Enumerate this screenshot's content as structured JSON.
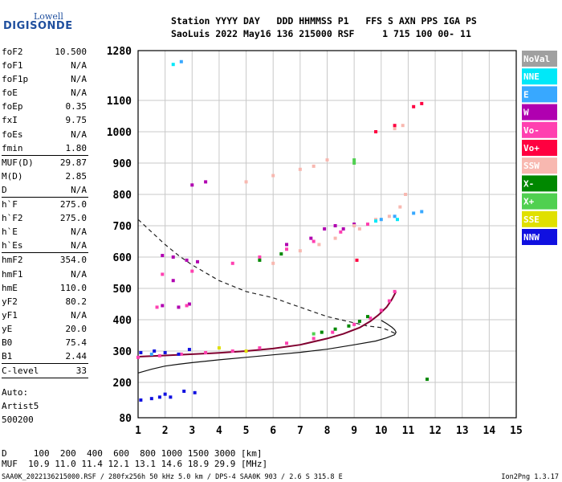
{
  "logo": {
    "top": "Lowell",
    "bottom": "DIGISONDE"
  },
  "header": {
    "line1": "Station YYYY DAY   DDD HHMMSS P1   FFS S AXN PPS IGA PS",
    "line2": "SaoLuis 2022 May16 136 215000 RSF     1 715 100 00- 11"
  },
  "params": [
    {
      "label": "foF2",
      "value": "10.500"
    },
    {
      "label": "foF1",
      "value": "N/A"
    },
    {
      "label": "foF1p",
      "value": "N/A"
    },
    {
      "label": "foE",
      "value": "N/A"
    },
    {
      "label": "foEp",
      "value": "0.35"
    },
    {
      "label": "fxI",
      "value": "9.75"
    },
    {
      "label": "foEs",
      "value": "N/A"
    },
    {
      "label": "fmin",
      "value": "1.80"
    },
    {
      "sep": true
    },
    {
      "label": "MUF(D)",
      "value": "29.87"
    },
    {
      "label": "M(D)",
      "value": "2.85"
    },
    {
      "label": "D",
      "value": "N/A"
    },
    {
      "sep": true
    },
    {
      "label": "h`F",
      "value": "275.0"
    },
    {
      "label": "h`F2",
      "value": "275.0"
    },
    {
      "label": "h`E",
      "value": "N/A"
    },
    {
      "label": "h`Es",
      "value": "N/A"
    },
    {
      "sep": true
    },
    {
      "label": "hmF2",
      "value": "354.0"
    },
    {
      "label": "hmF1",
      "value": "N/A"
    },
    {
      "label": "hmE",
      "value": "110.0"
    },
    {
      "label": "yF2",
      "value": "80.2"
    },
    {
      "label": "yF1",
      "value": "N/A"
    },
    {
      "label": "yE",
      "value": "20.0"
    },
    {
      "label": "B0",
      "value": "75.4"
    },
    {
      "label": "B1",
      "value": "2.44"
    },
    {
      "sep": true
    },
    {
      "label": "C-level",
      "value": "33"
    },
    {
      "sep": true
    }
  ],
  "extra": {
    "l1": "Auto:",
    "l2": "Artist5",
    "l3": "500200"
  },
  "dmuf": {
    "dline": "D     100  200  400  600  800 1000 1500 3000 [km]",
    "mline": "MUF  10.9 11.0 11.4 12.1 13.1 14.6 18.9 29.9 [MHz]"
  },
  "footer": {
    "left": "SAA0K_2022136215000.RSF / 280fx256h 50 kHz 5.0 km / DPS-4 SAA0K 903 / 2.6 S 315.8 E",
    "right": "Ion2Png 1.3.17"
  },
  "legend": [
    {
      "label": "NoVal",
      "color": "#a0a0a0"
    },
    {
      "label": "NNE",
      "color": "#00e8f8"
    },
    {
      "label": "E",
      "color": "#38a8ff"
    },
    {
      "label": "W",
      "color": "#b000b0"
    },
    {
      "label": "Vo-",
      "color": "#ff40b0"
    },
    {
      "label": "Vo+",
      "color": "#ff0040"
    },
    {
      "label": "SSW",
      "color": "#f8b8b0"
    },
    {
      "label": "X-",
      "color": "#008800"
    },
    {
      "label": "X+",
      "color": "#50d050"
    },
    {
      "label": "SSE",
      "color": "#e0e000"
    },
    {
      "label": "NNW",
      "color": "#1010e0"
    }
  ],
  "chart_data": {
    "type": "scatter",
    "xlabel": "",
    "ylabel": "",
    "xlim": [
      1,
      15
    ],
    "ylim": [
      80,
      1280
    ],
    "x_ticks": [
      1,
      2,
      3,
      4,
      5,
      6,
      7,
      8,
      9,
      10,
      11,
      12,
      13,
      14,
      15
    ],
    "y_ticks": [
      80,
      200,
      300,
      400,
      500,
      600,
      700,
      800,
      900,
      1000,
      1100,
      1280
    ],
    "grid": true,
    "series": [
      {
        "name": "W",
        "color": "#b000b0",
        "points": [
          [
            1.9,
            605
          ],
          [
            2.3,
            600
          ],
          [
            2.8,
            590
          ],
          [
            3.2,
            585
          ],
          [
            1.9,
            445
          ],
          [
            2.5,
            440
          ],
          [
            2.9,
            450
          ],
          [
            6.5,
            640
          ],
          [
            7.4,
            660
          ],
          [
            7.9,
            690
          ],
          [
            8.3,
            700
          ],
          [
            8.6,
            690
          ],
          [
            9.0,
            705
          ],
          [
            3.0,
            830
          ],
          [
            3.5,
            840
          ],
          [
            2.3,
            525
          ]
        ]
      },
      {
        "name": "Vo-",
        "color": "#ff40b0",
        "points": [
          [
            1.0,
            280
          ],
          [
            1.8,
            285
          ],
          [
            2.6,
            290
          ],
          [
            3.5,
            295
          ],
          [
            4.5,
            300
          ],
          [
            5.5,
            310
          ],
          [
            6.5,
            325
          ],
          [
            7.5,
            340
          ],
          [
            8.2,
            360
          ],
          [
            9.0,
            385
          ],
          [
            9.6,
            405
          ],
          [
            10.0,
            430
          ],
          [
            10.3,
            460
          ],
          [
            10.5,
            490
          ],
          [
            1.9,
            545
          ],
          [
            3.0,
            555
          ],
          [
            4.5,
            580
          ],
          [
            5.5,
            600
          ],
          [
            6.5,
            625
          ],
          [
            7.5,
            650
          ],
          [
            8.5,
            680
          ],
          [
            9.5,
            705
          ],
          [
            1.7,
            440
          ],
          [
            2.8,
            445
          ]
        ]
      },
      {
        "name": "SSW",
        "color": "#f8b8b0",
        "points": [
          [
            5.0,
            840
          ],
          [
            6.0,
            860
          ],
          [
            7.0,
            880
          ],
          [
            7.5,
            890
          ],
          [
            8.0,
            910
          ],
          [
            9.0,
            700
          ],
          [
            9.8,
            720
          ],
          [
            10.3,
            730
          ],
          [
            10.7,
            760
          ],
          [
            10.9,
            800
          ],
          [
            6.0,
            580
          ],
          [
            7.0,
            620
          ],
          [
            7.7,
            640
          ],
          [
            8.3,
            660
          ],
          [
            9.2,
            690
          ],
          [
            10.5,
            1010
          ],
          [
            10.8,
            1020
          ]
        ]
      },
      {
        "name": "X-",
        "color": "#008800",
        "points": [
          [
            7.8,
            360
          ],
          [
            8.3,
            370
          ],
          [
            8.8,
            380
          ],
          [
            9.2,
            395
          ],
          [
            9.5,
            410
          ],
          [
            5.5,
            590
          ],
          [
            6.3,
            610
          ],
          [
            11.7,
            210
          ]
        ]
      },
      {
        "name": "E",
        "color": "#38a8ff",
        "points": [
          [
            10.0,
            720
          ],
          [
            10.5,
            730
          ],
          [
            11.2,
            740
          ],
          [
            11.5,
            745
          ],
          [
            1.5,
            290
          ],
          [
            2.6,
            1240
          ]
        ]
      },
      {
        "name": "NNW",
        "color": "#1010e0",
        "points": [
          [
            1.1,
            295
          ],
          [
            1.6,
            300
          ],
          [
            2.0,
            295
          ],
          [
            2.5,
            290
          ],
          [
            2.9,
            305
          ],
          [
            1.1,
            140
          ],
          [
            1.5,
            145
          ],
          [
            1.8,
            150
          ],
          [
            2.0,
            160
          ],
          [
            2.2,
            150
          ],
          [
            2.7,
            170
          ],
          [
            3.1,
            165
          ]
        ]
      },
      {
        "name": "NNE",
        "color": "#00e8f8",
        "points": [
          [
            2.3,
            1230
          ],
          [
            9.8,
            715
          ],
          [
            10.6,
            720
          ]
        ]
      },
      {
        "name": "Vo+",
        "color": "#ff0040",
        "points": [
          [
            9.8,
            1000
          ],
          [
            10.5,
            1020
          ],
          [
            11.2,
            1080
          ],
          [
            9.1,
            590
          ],
          [
            11.5,
            1090
          ]
        ]
      },
      {
        "name": "X+",
        "color": "#50d050",
        "points": [
          [
            7.5,
            355
          ],
          [
            9.0,
            900
          ],
          [
            9.0,
            910
          ]
        ]
      },
      {
        "name": "SSE",
        "color": "#e0e000",
        "points": [
          [
            4.0,
            310
          ],
          [
            5.0,
            300
          ]
        ]
      }
    ],
    "profile_solid": {
      "x": [
        1.0,
        1.5,
        2.0,
        2.5,
        3.0,
        4.0,
        5.0,
        6.0,
        7.0,
        8.0,
        9.0,
        9.8,
        10.2,
        10.5,
        10.55,
        10.5,
        10.4,
        10.2,
        10.0
      ],
      "y": [
        230,
        242,
        252,
        258,
        263,
        272,
        280,
        288,
        296,
        306,
        320,
        332,
        342,
        352,
        360,
        368,
        376,
        388,
        398
      ]
    },
    "profile_dashed": {
      "x": [
        1.0,
        1.5,
        2.0,
        2.5,
        3.0,
        4.0,
        5.0,
        6.0,
        7.0,
        8.0,
        9.0,
        9.5,
        10.0,
        10.3,
        10.55
      ],
      "y": [
        720,
        680,
        640,
        605,
        575,
        525,
        490,
        470,
        440,
        410,
        390,
        380,
        375,
        365,
        355
      ]
    },
    "trace_dark": {
      "x": [
        1.0,
        2.0,
        3.0,
        4.0,
        5.0,
        6.0,
        7.0,
        8.0,
        8.6,
        9.2,
        9.6,
        9.9,
        10.2,
        10.4,
        10.55
      ],
      "y": [
        282,
        286,
        290,
        294,
        300,
        308,
        320,
        340,
        355,
        375,
        395,
        415,
        440,
        465,
        490
      ]
    }
  }
}
